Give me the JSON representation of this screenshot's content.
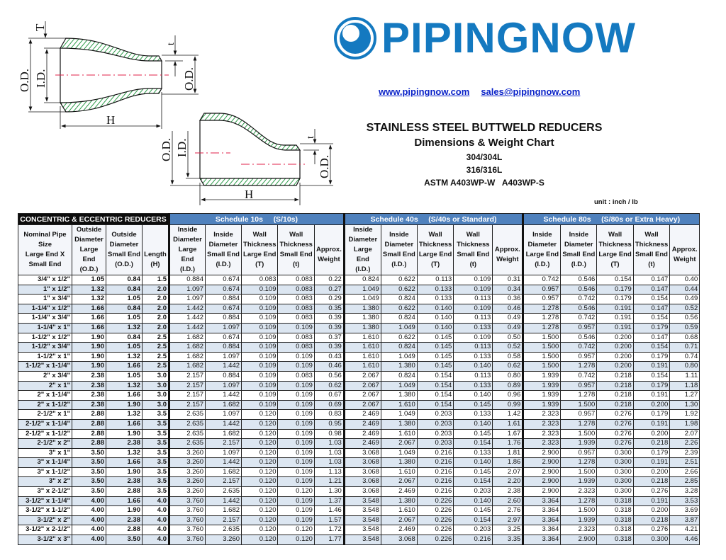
{
  "logo": {
    "text": "PIPINGNOW",
    "color": "#1479c0"
  },
  "links": {
    "website": "www.pipingnow.com",
    "email": "sales@pipingnow.com"
  },
  "titles": {
    "title": "STAINLESS STEEL BUTTWELD REDUCERS",
    "subtitle": "Dimensions & Weight Chart",
    "grade1": "304/304L",
    "grade2": "316/316L",
    "standard": "ASTM A403WP-W   A403WP-S"
  },
  "unit": "unit : inch / lb",
  "diagram": {
    "concentric": {
      "od_large": "O.D.",
      "id_large": "I.D.",
      "wall_large": "T",
      "wall_small": "t",
      "od_small": "O.D.",
      "length": "H"
    },
    "eccentric": {
      "od_large": "O.D.",
      "id_large": "I.D.",
      "wall_small": "t",
      "od_small": "O.D.",
      "length": "H"
    },
    "hatch_color": "#2e9b4a",
    "centerline_color": "#e0204a"
  },
  "table": {
    "groups": [
      "CONCENTRIC & ECCENTRIC REDUCERS",
      "Schedule 10s     (S/10s)",
      "Schedule 40s     (S/40s or Standard)",
      "Schedule 80s     (S/80s or Extra Heavy)"
    ],
    "columns": [
      "Nominal Pipe\nSize\nLarge End X\nSmall End",
      "Outside\nDiameter\nLarge End\n(O.D.)",
      "Outside\nDiameter\nSmall End\n(O.D.)",
      "\n\nLength\n(H)",
      "Inside\nDiameter\nLarge End\n(I.D.)",
      "Inside\nDiameter\nSmall End\n(I.D.)",
      "Wall\nThickness\nLarge End\n(T)",
      "Wall\nThickness\nSmall End\n(t)",
      "\nApprox.\nWeight\n",
      "Inside\nDiameter\nLarge End\n(I.D.)",
      "Inside\nDiameter\nSmall End\n(I.D.)",
      "Wall\nThickness\nLarge End\n(T)",
      "Wall\nThickness\nSmall End\n(t)",
      "\nApprox.\nWeight\n",
      "Inside\nDiameter\nLarge End\n(I.D.)",
      "Inside\nDiameter\nSmall End\n(I.D.)",
      "Wall\nThickness\nLarge End\n(T)",
      "Wall\nThickness\nSmall End\n(t)",
      "\nApprox.\nWeight\n"
    ],
    "rows": [
      [
        "3/4\" x 1/2\"",
        "1.05",
        "0.84",
        "1.5",
        "0.884",
        "0.674",
        "0.083",
        "0.083",
        "0.22",
        "0.824",
        "0.622",
        "0.113",
        "0.109",
        "0.31",
        "0.742",
        "0.546",
        "0.154",
        "0.147",
        "0.40"
      ],
      [
        "1\" x 1/2\"",
        "1.32",
        "0.84",
        "2.0",
        "1.097",
        "0.674",
        "0.109",
        "0.083",
        "0.27",
        "1.049",
        "0.622",
        "0.133",
        "0.109",
        "0.34",
        "0.957",
        "0.546",
        "0.179",
        "0.147",
        "0.44"
      ],
      [
        "1\" x 3/4\"",
        "1.32",
        "1.05",
        "2.0",
        "1.097",
        "0.884",
        "0.109",
        "0.083",
        "0.29",
        "1.049",
        "0.824",
        "0.133",
        "0.113",
        "0.36",
        "0.957",
        "0.742",
        "0.179",
        "0.154",
        "0.49"
      ],
      [
        "1-1/4\" x 1/2\"",
        "1.66",
        "0.84",
        "2.0",
        "1.442",
        "0.674",
        "0.109",
        "0.083",
        "0.35",
        "1.380",
        "0.622",
        "0.140",
        "0.109",
        "0.46",
        "1.278",
        "0.546",
        "0.191",
        "0.147",
        "0.52"
      ],
      [
        "1-1/4\" x 3/4\"",
        "1.66",
        "1.05",
        "2.0",
        "1.442",
        "0.884",
        "0.109",
        "0.083",
        "0.39",
        "1.380",
        "0.824",
        "0.140",
        "0.113",
        "0.49",
        "1.278",
        "0.742",
        "0.191",
        "0.154",
        "0.56"
      ],
      [
        "1-1/4\" x 1\"",
        "1.66",
        "1.32",
        "2.0",
        "1.442",
        "1.097",
        "0.109",
        "0.109",
        "0.39",
        "1.380",
        "1.049",
        "0.140",
        "0.133",
        "0.49",
        "1.278",
        "0.957",
        "0.191",
        "0.179",
        "0.59"
      ],
      [
        "1-1/2\" x 1/2\"",
        "1.90",
        "0.84",
        "2.5",
        "1.682",
        "0.674",
        "0.109",
        "0.083",
        "0.37",
        "1.610",
        "0.622",
        "0.145",
        "0.109",
        "0.50",
        "1.500",
        "0.546",
        "0.200",
        "0.147",
        "0.68"
      ],
      [
        "1-1/2\" x 3/4\"",
        "1.90",
        "1.05",
        "2.5",
        "1.682",
        "0.884",
        "0.109",
        "0.083",
        "0.39",
        "1.610",
        "0.824",
        "0.145",
        "0.113",
        "0.52",
        "1.500",
        "0.742",
        "0.200",
        "0.154",
        "0.71"
      ],
      [
        "1-1/2\" x 1\"",
        "1.90",
        "1.32",
        "2.5",
        "1.682",
        "1.097",
        "0.109",
        "0.109",
        "0.43",
        "1.610",
        "1.049",
        "0.145",
        "0.133",
        "0.58",
        "1.500",
        "0.957",
        "0.200",
        "0.179",
        "0.74"
      ],
      [
        "1-1/2\" x 1-1/4\"",
        "1.90",
        "1.66",
        "2.5",
        "1.682",
        "1.442",
        "0.109",
        "0.109",
        "0.46",
        "1.610",
        "1.380",
        "0.145",
        "0.140",
        "0.62",
        "1.500",
        "1.278",
        "0.200",
        "0.191",
        "0.80"
      ],
      [
        "2\" x 3/4\"",
        "2.38",
        "1.05",
        "3.0",
        "2.157",
        "0.884",
        "0.109",
        "0.083",
        "0.56",
        "2.067",
        "0.824",
        "0.154",
        "0.113",
        "0.80",
        "1.939",
        "0.742",
        "0.218",
        "0.154",
        "1.11"
      ],
      [
        "2\" x 1\"",
        "2.38",
        "1.32",
        "3.0",
        "2.157",
        "1.097",
        "0.109",
        "0.109",
        "0.62",
        "2.067",
        "1.049",
        "0.154",
        "0.133",
        "0.89",
        "1.939",
        "0.957",
        "0.218",
        "0.179",
        "1.18"
      ],
      [
        "2\" x 1-1/4\"",
        "2.38",
        "1.66",
        "3.0",
        "2.157",
        "1.442",
        "0.109",
        "0.109",
        "0.67",
        "2.067",
        "1.380",
        "0.154",
        "0.140",
        "0.96",
        "1.939",
        "1.278",
        "0.218",
        "0.191",
        "1.27"
      ],
      [
        "2\" x 1-1/2\"",
        "2.38",
        "1.90",
        "3.0",
        "2.157",
        "1.682",
        "0.109",
        "0.109",
        "0.69",
        "2.067",
        "1.610",
        "0.154",
        "0.145",
        "0.99",
        "1.939",
        "1.500",
        "0.218",
        "0.200",
        "1.30"
      ],
      [
        "2-1/2\" x 1\"",
        "2.88",
        "1.32",
        "3.5",
        "2.635",
        "1.097",
        "0.120",
        "0.109",
        "0.83",
        "2.469",
        "1.049",
        "0.203",
        "0.133",
        "1.42",
        "2.323",
        "0.957",
        "0.276",
        "0.179",
        "1.92"
      ],
      [
        "2-1/2\" x 1-1/4\"",
        "2.88",
        "1.66",
        "3.5",
        "2.635",
        "1.442",
        "0.120",
        "0.109",
        "0.95",
        "2.469",
        "1.380",
        "0.203",
        "0.140",
        "1.61",
        "2.323",
        "1.278",
        "0.276",
        "0.191",
        "1.98"
      ],
      [
        "2-1/2\" x 1-1/2\"",
        "2.88",
        "1.90",
        "3.5",
        "2.635",
        "1.682",
        "0.120",
        "0.109",
        "0.98",
        "2.469",
        "1.610",
        "0.203",
        "0.145",
        "1.67",
        "2.323",
        "1.500",
        "0.276",
        "0.200",
        "2.07"
      ],
      [
        "2-1/2\" x 2\"",
        "2.88",
        "2.38",
        "3.5",
        "2.635",
        "2.157",
        "0.120",
        "0.109",
        "1.03",
        "2.469",
        "2.067",
        "0.203",
        "0.154",
        "1.76",
        "2.323",
        "1.939",
        "0.276",
        "0.218",
        "2.26"
      ],
      [
        "3\" x 1\"",
        "3.50",
        "1.32",
        "3.5",
        "3.260",
        "1.097",
        "0.120",
        "0.109",
        "1.03",
        "3.068",
        "1.049",
        "0.216",
        "0.133",
        "1.81",
        "2.900",
        "0.957",
        "0.300",
        "0.179",
        "2.39"
      ],
      [
        "3\" x 1-1/4\"",
        "3.50",
        "1.66",
        "3.5",
        "3.260",
        "1.442",
        "0.120",
        "0.109",
        "1.03",
        "3.068",
        "1.380",
        "0.216",
        "0.140",
        "1.86",
        "2.900",
        "1.278",
        "0.300",
        "0.191",
        "2.51"
      ],
      [
        "3\" x 1-1/2\"",
        "3.50",
        "1.90",
        "3.5",
        "3.260",
        "1.682",
        "0.120",
        "0.109",
        "1.13",
        "3.068",
        "1.610",
        "0.216",
        "0.145",
        "2.07",
        "2.900",
        "1.500",
        "0.300",
        "0.200",
        "2.66"
      ],
      [
        "3\" x 2\"",
        "3.50",
        "2.38",
        "3.5",
        "3.260",
        "2.157",
        "0.120",
        "0.109",
        "1.21",
        "3.068",
        "2.067",
        "0.216",
        "0.154",
        "2.20",
        "2.900",
        "1.939",
        "0.300",
        "0.218",
        "2.85"
      ],
      [
        "3\" x 2-1/2\"",
        "3.50",
        "2.88",
        "3.5",
        "3.260",
        "2.635",
        "0.120",
        "0.120",
        "1.30",
        "3.068",
        "2.469",
        "0.216",
        "0.203",
        "2.38",
        "2.900",
        "2.323",
        "0.300",
        "0.276",
        "3.28"
      ],
      [
        "3-1/2\" x 1-1/4\"",
        "4.00",
        "1.66",
        "4.0",
        "3.760",
        "1.442",
        "0.120",
        "0.109",
        "1.37",
        "3.548",
        "1.380",
        "0.226",
        "0.140",
        "2.60",
        "3.364",
        "1.278",
        "0.318",
        "0.191",
        "3.53"
      ],
      [
        "3-1/2\" x 1-1/2\"",
        "4.00",
        "1.90",
        "4.0",
        "3.760",
        "1.682",
        "0.120",
        "0.109",
        "1.46",
        "3.548",
        "1.610",
        "0.226",
        "0.145",
        "2.76",
        "3.364",
        "1.500",
        "0.318",
        "0.200",
        "3.69"
      ],
      [
        "3-1/2\" x 2\"",
        "4.00",
        "2.38",
        "4.0",
        "3.760",
        "2.157",
        "0.120",
        "0.109",
        "1.57",
        "3.548",
        "2.067",
        "0.226",
        "0.154",
        "2.97",
        "3.364",
        "1.939",
        "0.318",
        "0.218",
        "3.87"
      ],
      [
        "3-1/2\" x 2-1/2\"",
        "4.00",
        "2.88",
        "4.0",
        "3.760",
        "2.635",
        "0.120",
        "0.120",
        "1.72",
        "3.548",
        "2.469",
        "0.226",
        "0.203",
        "3.25",
        "3.364",
        "2.323",
        "0.318",
        "0.276",
        "4.21"
      ],
      [
        "3-1/2\" x 3\"",
        "4.00",
        "3.50",
        "4.0",
        "3.760",
        "3.260",
        "0.120",
        "0.120",
        "1.77",
        "3.548",
        "3.068",
        "0.226",
        "0.216",
        "3.35",
        "3.364",
        "2.900",
        "0.318",
        "0.300",
        "4.46"
      ]
    ]
  }
}
